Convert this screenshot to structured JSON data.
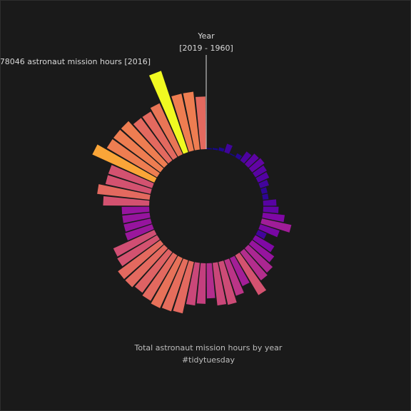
{
  "chart_data": {
    "type": "bar",
    "subtype": "radial",
    "title": "",
    "axis_label": "Year",
    "axis_range_label": "[2019 - 1960]",
    "annotation": "78046 astronaut mission hours [2016]",
    "caption_line1": "Total astronaut mission hours by year",
    "caption_line2": "#tidytuesday",
    "colormap": "plasma",
    "ymax": 78046,
    "x": [
      2019,
      2018,
      2017,
      2016,
      2015,
      2014,
      2013,
      2012,
      2011,
      2010,
      2009,
      2008,
      2007,
      2006,
      2005,
      2004,
      2003,
      2002,
      2001,
      2000,
      1999,
      1998,
      1997,
      1996,
      1995,
      1994,
      1993,
      1992,
      1991,
      1990,
      1989,
      1988,
      1987,
      1986,
      1985,
      1984,
      1983,
      1982,
      1981,
      1980,
      1979,
      1978,
      1977,
      1976,
      1975,
      1974,
      1973,
      1972,
      1971,
      1970,
      1969,
      1968,
      1967,
      1966,
      1965,
      1964,
      1963,
      1962,
      1961,
      1960
    ],
    "values": [
      48000,
      53000,
      53000,
      78046,
      51000,
      48000,
      48000,
      53000,
      53000,
      53000,
      62000,
      42000,
      42000,
      48000,
      42000,
      25000,
      25000,
      25000,
      26000,
      41000,
      42000,
      48000,
      48000,
      46000,
      48000,
      50000,
      49000,
      48000,
      39000,
      37000,
      32000,
      39000,
      40000,
      34000,
      28000,
      42000,
      32000,
      30000,
      25000,
      20000,
      8500,
      18500,
      27500,
      20000,
      14000,
      12000,
      5200,
      5200,
      8300,
      11000,
      12000,
      14000,
      13000,
      10000,
      4000,
      1000,
      8000,
      3000,
      1500,
      1000
    ]
  }
}
